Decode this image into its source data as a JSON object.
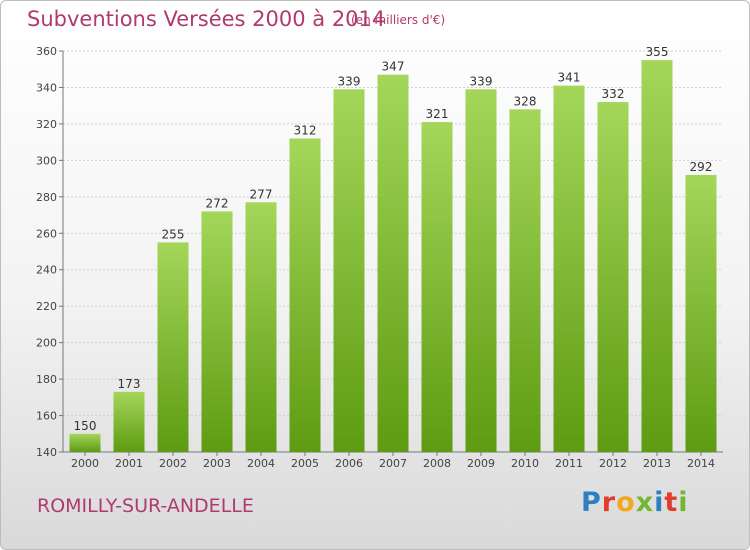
{
  "header": {
    "title": "Subventions Versées 2000 à 2014",
    "subtitle": "(en milliers d'€)"
  },
  "footer": {
    "city": "ROMILLY-SUR-ANDELLE",
    "logo": "Proxiti",
    "logo_colors": [
      "#2e7fc2",
      "#e23b2e",
      "#f2a81d",
      "#74b72e",
      "#2e7fc2",
      "#e23b2e",
      "#74b72e"
    ]
  },
  "chart_data": {
    "type": "bar",
    "title": "Subventions Versées 2000 à 2014",
    "subtitle": "(en milliers d'€)",
    "xlabel": "",
    "ylabel": "",
    "categories": [
      "2000",
      "2001",
      "2002",
      "2003",
      "2004",
      "2005",
      "2006",
      "2007",
      "2008",
      "2009",
      "2010",
      "2011",
      "2012",
      "2013",
      "2014"
    ],
    "values": [
      150,
      173,
      255,
      272,
      277,
      312,
      339,
      347,
      321,
      339,
      328,
      341,
      332,
      355,
      292
    ],
    "ylim": [
      140,
      360
    ],
    "yticks": [
      140,
      160,
      180,
      200,
      220,
      240,
      260,
      280,
      300,
      320,
      340,
      360
    ],
    "grid": true,
    "legend": "none",
    "bar_color_top": "#a4d65a",
    "bar_color_bottom": "#5e9b12"
  }
}
